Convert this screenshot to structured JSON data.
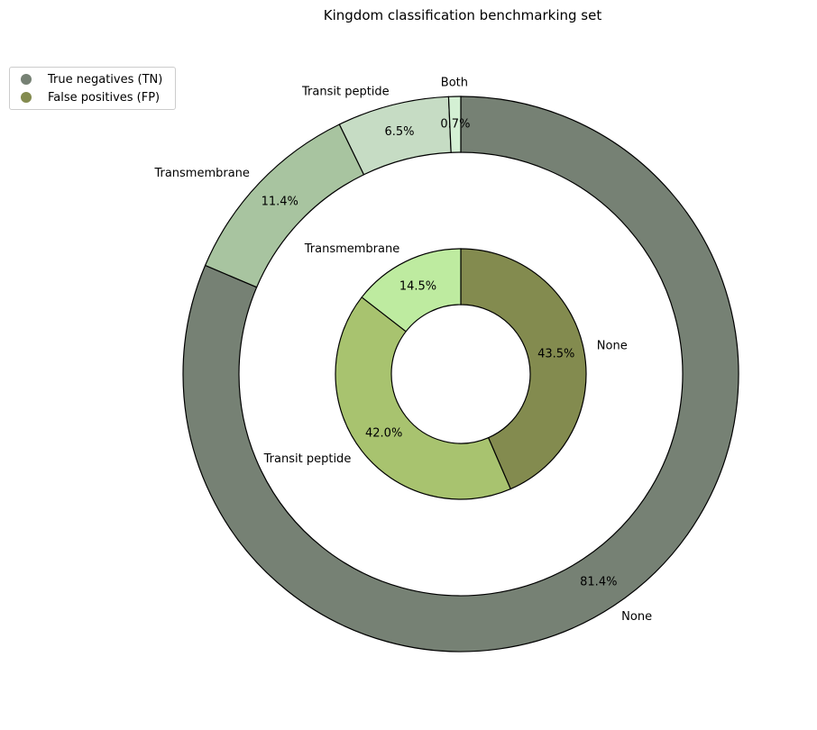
{
  "chart_data": {
    "type": "pie",
    "title": "Kingdom classification benchmarking set",
    "legend": {
      "placement": "top-left",
      "entries": [
        {
          "label": "True negatives (TN)",
          "color": "#768174"
        },
        {
          "label": "False positives (FP)",
          "color": "#838B4F"
        }
      ]
    },
    "rings": [
      {
        "name": "True negatives (TN)",
        "ring": "outer",
        "slices": [
          {
            "label": "None",
            "value": 81.4,
            "pct_label": "81.4%",
            "color": "#768174"
          },
          {
            "label": "Transmembrane",
            "value": 11.4,
            "pct_label": "11.4%",
            "color": "#A8C4A0"
          },
          {
            "label": "Transit peptide",
            "value": 6.5,
            "pct_label": "6.5%",
            "color": "#C6DCC4"
          },
          {
            "label": "Both",
            "value": 0.7,
            "pct_label": "0.7%",
            "color": "#D4F0D4"
          }
        ]
      },
      {
        "name": "False positives (FP)",
        "ring": "inner",
        "slices": [
          {
            "label": "None",
            "value": 43.5,
            "pct_label": "43.5%",
            "color": "#838B4F"
          },
          {
            "label": "Transit peptide",
            "value": 42.0,
            "pct_label": "42.0%",
            "color": "#A8C36F"
          },
          {
            "label": "Transmembrane",
            "value": 14.5,
            "pct_label": "14.5%",
            "color": "#BEEBA0"
          }
        ]
      }
    ]
  }
}
